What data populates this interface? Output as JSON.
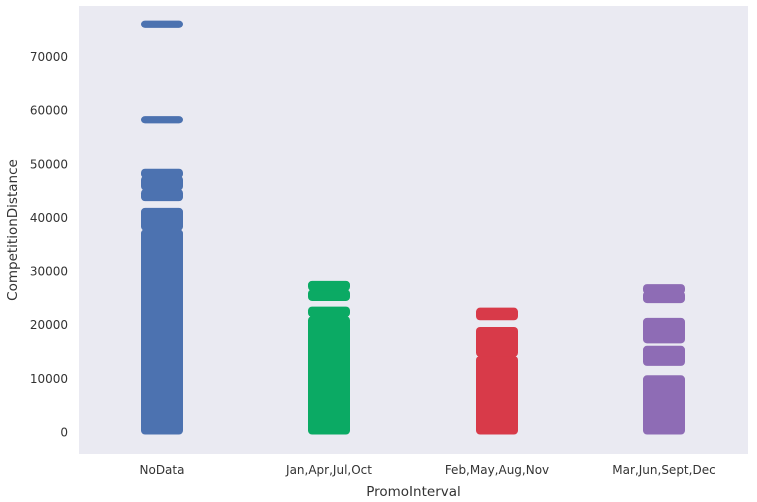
{
  "chart_data": {
    "type": "scatter",
    "subtype": "strip",
    "xlabel": "PromoInterval",
    "ylabel": "CompetitionDistance",
    "categories": [
      "NoData",
      "Jan,Apr,Jul,Oct",
      "Feb,May,Aug,Nov",
      "Mar,Jun,Sept,Dec"
    ],
    "y_ticks": [
      0,
      10000,
      20000,
      30000,
      40000,
      50000,
      60000,
      70000
    ],
    "ylim": [
      -4000,
      79500
    ],
    "grid": false,
    "background": "#EAEAF2",
    "series": [
      {
        "category": "NoData",
        "color": "#4C72B0",
        "ranges": [
          [
            0,
            37500
          ],
          [
            38000,
            41500
          ],
          [
            43500,
            45000
          ],
          [
            45500,
            47500
          ],
          [
            47800,
            48800
          ],
          [
            58000,
            58600
          ],
          [
            75800,
            76400
          ]
        ]
      },
      {
        "category": "Jan,Apr,Jul,Oct",
        "color": "#0BAA64",
        "ranges": [
          [
            0,
            21300
          ],
          [
            21900,
            23100
          ],
          [
            24900,
            26300
          ],
          [
            26800,
            27900
          ]
        ]
      },
      {
        "category": "Feb,May,Aug,Nov",
        "color": "#D83A49",
        "ranges": [
          [
            0,
            13900
          ],
          [
            14500,
            19300
          ],
          [
            21300,
            22900
          ]
        ]
      },
      {
        "category": "Mar,Jun,Sept,Dec",
        "color": "#8E6CB5",
        "ranges": [
          [
            0,
            10300
          ],
          [
            12800,
            15800
          ],
          [
            17000,
            21000
          ],
          [
            24500,
            26000
          ],
          [
            26200,
            27300
          ]
        ]
      }
    ]
  }
}
